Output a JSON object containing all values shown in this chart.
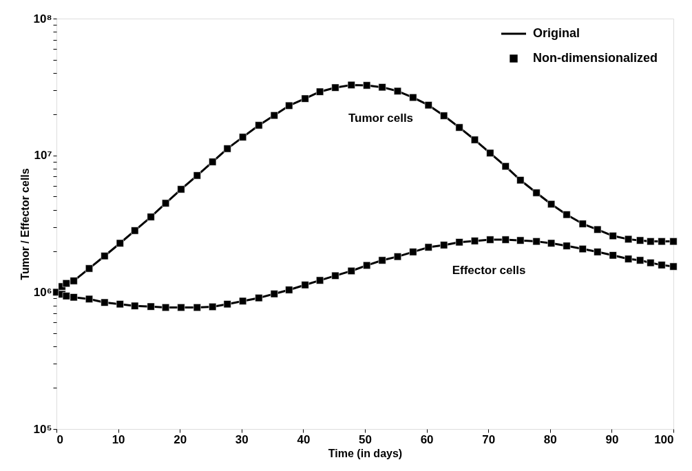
{
  "chart_data": {
    "type": "line",
    "xlabel": "Time (in days)",
    "ylabel": "Tumor / Effector cells",
    "x": [
      0,
      0.9,
      1.6,
      2.8,
      5.3,
      7.8,
      10.3,
      12.7,
      15.3,
      17.7,
      20.2,
      22.8,
      25.3,
      27.7,
      30.2,
      32.8,
      35.3,
      37.7,
      40.3,
      42.7,
      45.2,
      47.8,
      50.3,
      52.8,
      55.3,
      57.8,
      60.3,
      62.8,
      65.3,
      67.8,
      70.3,
      72.8,
      75.2,
      77.8,
      80.2,
      82.7,
      85.3,
      87.7,
      90.2,
      92.7,
      94.6,
      96.3,
      98.1,
      100
    ],
    "series": [
      {
        "name": "Original",
        "color": "#000000",
        "values": [
          1000000,
          1100000,
          1160000,
          1210000,
          1490000,
          1840000,
          2280000,
          2820000,
          3550000,
          4470000,
          5650000,
          7130000,
          8970000,
          11200000,
          13600000,
          16600000,
          19600000,
          23100000,
          26000000,
          29200000,
          31300000,
          32700000,
          32500000,
          31500000,
          29500000,
          26500000,
          23300000,
          19500000,
          16000000,
          13000000,
          10400000,
          8320000,
          6590000,
          5330000,
          4400000,
          3690000,
          3160000,
          2870000,
          2580000,
          2440000,
          2390000,
          2350000,
          2350000,
          2350000
        ]
      },
      {
        "color": "#000000",
        "values": [
          1000000,
          966000,
          938000,
          918000,
          891000,
          841000,
          818000,
          794000,
          785000,
          773000,
          773000,
          773000,
          782000,
          818000,
          861000,
          908000,
          972000,
          1040000,
          1130000,
          1220000,
          1320000,
          1430000,
          1570000,
          1710000,
          1820000,
          1970000,
          2130000,
          2210000,
          2320000,
          2370000,
          2420000,
          2420000,
          2390000,
          2350000,
          2280000,
          2180000,
          2070000,
          1970000,
          1860000,
          1750000,
          1710000,
          1640000,
          1580000,
          1540000
        ]
      },
      {
        "name": "Non-dimensionalized",
        "type": "scatter",
        "marker": "square",
        "color": "#000000",
        "values": [
          1000000,
          1100000,
          1160000,
          1210000,
          1490000,
          1840000,
          2280000,
          2820000,
          3550000,
          4470000,
          5650000,
          7130000,
          8970000,
          11200000,
          13600000,
          16600000,
          19600000,
          23100000,
          26000000,
          29200000,
          31300000,
          32700000,
          32500000,
          31500000,
          29500000,
          26500000,
          23300000,
          19500000,
          16000000,
          13000000,
          10400000,
          8320000,
          6590000,
          5330000,
          4400000,
          3690000,
          3160000,
          2870000,
          2580000,
          2440000,
          2390000,
          2350000,
          2350000,
          2350000
        ]
      },
      {
        "type": "scatter",
        "marker": "square",
        "color": "#000000",
        "values": [
          null,
          966000,
          938000,
          918000,
          891000,
          841000,
          818000,
          794000,
          785000,
          773000,
          773000,
          773000,
          782000,
          818000,
          861000,
          908000,
          972000,
          1040000,
          1130000,
          1220000,
          1320000,
          1430000,
          1570000,
          1710000,
          1820000,
          1970000,
          2130000,
          2210000,
          2320000,
          2370000,
          2420000,
          2420000,
          2390000,
          2350000,
          2280000,
          2180000,
          2070000,
          1970000,
          1860000,
          1750000,
          1710000,
          1640000,
          1580000,
          1540000
        ]
      }
    ],
    "annotations": [
      "Tumor cells",
      "Effector cells"
    ],
    "log": "y",
    "xlim": [
      0,
      100
    ],
    "xticks": [
      0,
      10,
      20,
      30,
      40,
      50,
      60,
      70,
      80,
      90,
      100
    ],
    "ylim": [
      100000,
      100000000
    ],
    "yticks": [
      {
        "value": 100000,
        "label": "10⁵"
      },
      {
        "value": 200000,
        "label": null
      },
      {
        "value": 300000,
        "label": null
      },
      {
        "value": 400000,
        "label": null
      },
      {
        "value": 500000,
        "label": null
      },
      {
        "value": 600000,
        "label": null
      },
      {
        "value": 700000,
        "label": null
      },
      {
        "value": 800000,
        "label": null
      },
      {
        "value": 900000,
        "label": null
      },
      {
        "value": 1000000,
        "label": "10⁶"
      },
      {
        "value": 2000000,
        "label": null
      },
      {
        "value": 3000000,
        "label": null
      },
      {
        "value": 4000000,
        "label": null
      },
      {
        "value": 5000000,
        "label": null
      },
      {
        "value": 6000000,
        "label": null
      },
      {
        "value": 7000000,
        "label": null
      },
      {
        "value": 8000000,
        "label": null
      },
      {
        "value": 9000000,
        "label": null
      },
      {
        "value": 10000000,
        "label": "10⁷"
      },
      {
        "value": 20000000,
        "label": null
      },
      {
        "value": 30000000,
        "label": null
      },
      {
        "value": 40000000,
        "label": null
      },
      {
        "value": 50000000,
        "label": null
      },
      {
        "value": 60000000,
        "label": null
      },
      {
        "value": 70000000,
        "label": null
      },
      {
        "value": 80000000,
        "label": null
      },
      {
        "value": 90000000,
        "label": null
      },
      {
        "value": 100000000,
        "label": "10⁸"
      }
    ],
    "grid": false,
    "legend": "top right"
  }
}
